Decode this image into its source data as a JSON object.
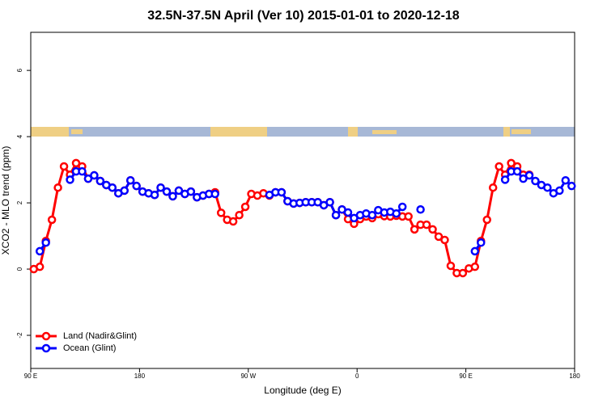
{
  "chart_data": {
    "type": "line",
    "title": "32.5N-37.5N April (Ver 10)   2015-01-01 to 2020-12-18",
    "x_label": "Longitude (deg E)",
    "y_label": "XCO2 - MLO trend (ppm)",
    "x": [
      92.5,
      97.5,
      102.5,
      107.5,
      112.5,
      117.5,
      122.5,
      127.5,
      132.5,
      137.5,
      142.5,
      147.5,
      152.5,
      157.5,
      162.5,
      167.5,
      172.5,
      177.5,
      182.5,
      187.5,
      192.5,
      197.5,
      202.5,
      207.5,
      212.5,
      217.5,
      222.5,
      227.5,
      232.5,
      237.5,
      242.5,
      247.5,
      252.5,
      257.5,
      262.5,
      267.5,
      272.5,
      277.5,
      282.5,
      287.5,
      292.5,
      297.5,
      302.5,
      307.5,
      312.5,
      317.5,
      322.5,
      327.5,
      332.5,
      337.5,
      342.5,
      347.5,
      352.5,
      357.5,
      362.5,
      367.5,
      372.5,
      377.5,
      382.5,
      387.5,
      392.5,
      397.5,
      402.5,
      407.5,
      412.5,
      417.5,
      422.5,
      427.5,
      432.5,
      437.5,
      442.5,
      447.5,
      452.5,
      457.5,
      462.5,
      467.5,
      472.5,
      477.5,
      482.5,
      487.5,
      492.5,
      497.5,
      502.5,
      507.5,
      512.5,
      517.5,
      522.5,
      527.5,
      532.5,
      537.5
    ],
    "series": [
      {
        "name": "Land (Nadir&Glint)",
        "color": "#ff0000",
        "values": [
          0.0,
          0.07,
          0.85,
          1.49,
          2.46,
          3.1,
          2.85,
          3.2,
          3.1,
          2.73,
          2.83,
          2.66,
          2.54,
          2.46,
          2.29,
          2.37,
          2.68,
          2.51,
          2.34,
          2.29,
          2.24,
          2.46,
          2.34,
          2.2,
          2.37,
          2.27,
          2.34,
          2.17,
          2.22,
          2.27,
          2.32,
          1.7,
          1.49,
          1.44,
          1.63,
          1.88,
          2.27,
          2.22,
          2.29,
          2.22,
          2.32,
          2.32,
          2.05,
          1.98,
          2.0,
          2.02,
          2.02,
          2.02,
          1.93,
          2.02,
          1.63,
          1.8,
          1.51,
          1.37,
          1.51,
          1.59,
          1.54,
          1.66,
          1.6,
          1.59,
          1.61,
          1.59,
          1.59,
          1.2,
          1.34,
          1.34,
          1.2,
          0.98,
          0.88,
          0.1,
          -0.12,
          -0.12,
          0.02,
          0.07,
          0.85,
          1.49,
          2.46,
          3.1,
          2.85,
          3.2,
          3.1,
          2.85,
          2.85,
          null,
          null,
          null,
          null,
          null,
          null,
          null
        ]
      },
      {
        "name": "Ocean (Glint)",
        "color": "#0000ff",
        "values": [
          null,
          0.54,
          0.8,
          null,
          null,
          null,
          2.7,
          2.95,
          2.95,
          2.73,
          2.83,
          2.66,
          2.54,
          2.46,
          2.29,
          2.37,
          2.68,
          2.51,
          2.34,
          2.29,
          2.24,
          2.46,
          2.34,
          2.2,
          2.37,
          2.27,
          2.34,
          2.17,
          2.22,
          2.27,
          2.27,
          null,
          null,
          null,
          null,
          null,
          null,
          null,
          null,
          2.24,
          2.32,
          2.32,
          2.05,
          1.98,
          2.0,
          2.02,
          2.02,
          2.02,
          1.93,
          2.02,
          1.63,
          1.8,
          1.71,
          1.54,
          1.63,
          1.68,
          1.63,
          1.78,
          1.71,
          1.73,
          1.68,
          1.88,
          null,
          null,
          1.8,
          null,
          null,
          null,
          null,
          null,
          null,
          null,
          null,
          0.54,
          0.8,
          null,
          null,
          null,
          2.7,
          2.95,
          2.95,
          2.73,
          2.83,
          2.66,
          2.54,
          2.46,
          2.29,
          2.37,
          2.68,
          2.51
        ]
      }
    ],
    "xlim": [
      90,
      540
    ],
    "xticks": [
      {
        "value": 90,
        "label": "90 E"
      },
      180,
      {
        "value": 270,
        "label": "90 W"
      },
      {
        "value": 360,
        "label": "0"
      },
      {
        "value": 450,
        "label": "90 E"
      },
      {
        "value": 540,
        "label": "180"
      }
    ],
    "ylim": [
      -3,
      7.15
    ],
    "yticks": [
      -2,
      0,
      2,
      4,
      6
    ],
    "legend": "bottom-left"
  }
}
